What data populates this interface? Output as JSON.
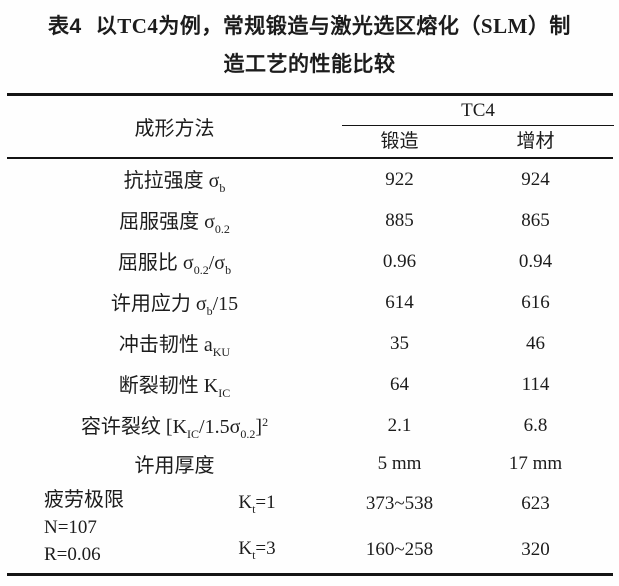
{
  "title": {
    "table_no": "表4",
    "seg1": "以",
    "latin1": "TC4",
    "seg2": "为例，常规锻造与激光选区熔化（",
    "latin2": "SLM",
    "seg3": "）制",
    "line2": "造工艺的性能比较"
  },
  "header": {
    "method": "成形方法",
    "group": "TC4",
    "sub_col1": "锻造",
    "sub_col2": "增材"
  },
  "table": {
    "rows": [
      {
        "main": "抗拉强度 σ",
        "sub": "b",
        "mid": "",
        "sub2": "",
        "mid2": "",
        "sup": "",
        "forge": "922",
        "additive": "924"
      },
      {
        "main": "屈服强度 σ",
        "sub": "0.2",
        "mid": "",
        "sub2": "",
        "mid2": "",
        "sup": "",
        "forge": "885",
        "additive": "865"
      },
      {
        "main": "屈服比 σ",
        "sub": "0.2",
        "mid": "/σ",
        "sub2": "b",
        "mid2": "",
        "sup": "",
        "forge": "0.96",
        "additive": "0.94"
      },
      {
        "main": "许用应力 σ",
        "sub": "b",
        "mid": "/15",
        "sub2": "",
        "mid2": "",
        "sup": "",
        "forge": "614",
        "additive": "616"
      },
      {
        "main": "冲击韧性 a",
        "sub": "KU",
        "mid": "",
        "sub2": "",
        "mid2": "",
        "sup": "",
        "forge": "35",
        "additive": "46"
      },
      {
        "main": "断裂韧性 K",
        "sub": "IC",
        "mid": "",
        "sub2": "",
        "mid2": "",
        "sup": "",
        "forge": "64",
        "additive": "114"
      },
      {
        "main": "容许裂纹 [K",
        "sub": "IC",
        "mid": "/1.5σ",
        "sub2": "0.2",
        "mid2": "]",
        "sup": "2",
        "forge": "2.1",
        "additive": "6.8"
      },
      {
        "main": "许用厚度",
        "sub": "",
        "mid": "",
        "sub2": "",
        "mid2": "",
        "sup": "",
        "forge": "5 mm",
        "additive": "17 mm"
      }
    ],
    "fatigue": {
      "label_line1": "疲劳极限",
      "label_line2": "N=107",
      "label_line3": "R=0.06",
      "sub_rows": [
        {
          "k_main": "K",
          "k_sub": "t",
          "k_rest": "=1",
          "forge": "373~538",
          "additive": "623"
        },
        {
          "k_main": "K",
          "k_sub": "t",
          "k_rest": "=3",
          "forge": "160~258",
          "additive": "320"
        }
      ]
    }
  },
  "colors": {
    "text": "#1c1c1c",
    "rule": "#141414",
    "background": "#fefefe"
  }
}
